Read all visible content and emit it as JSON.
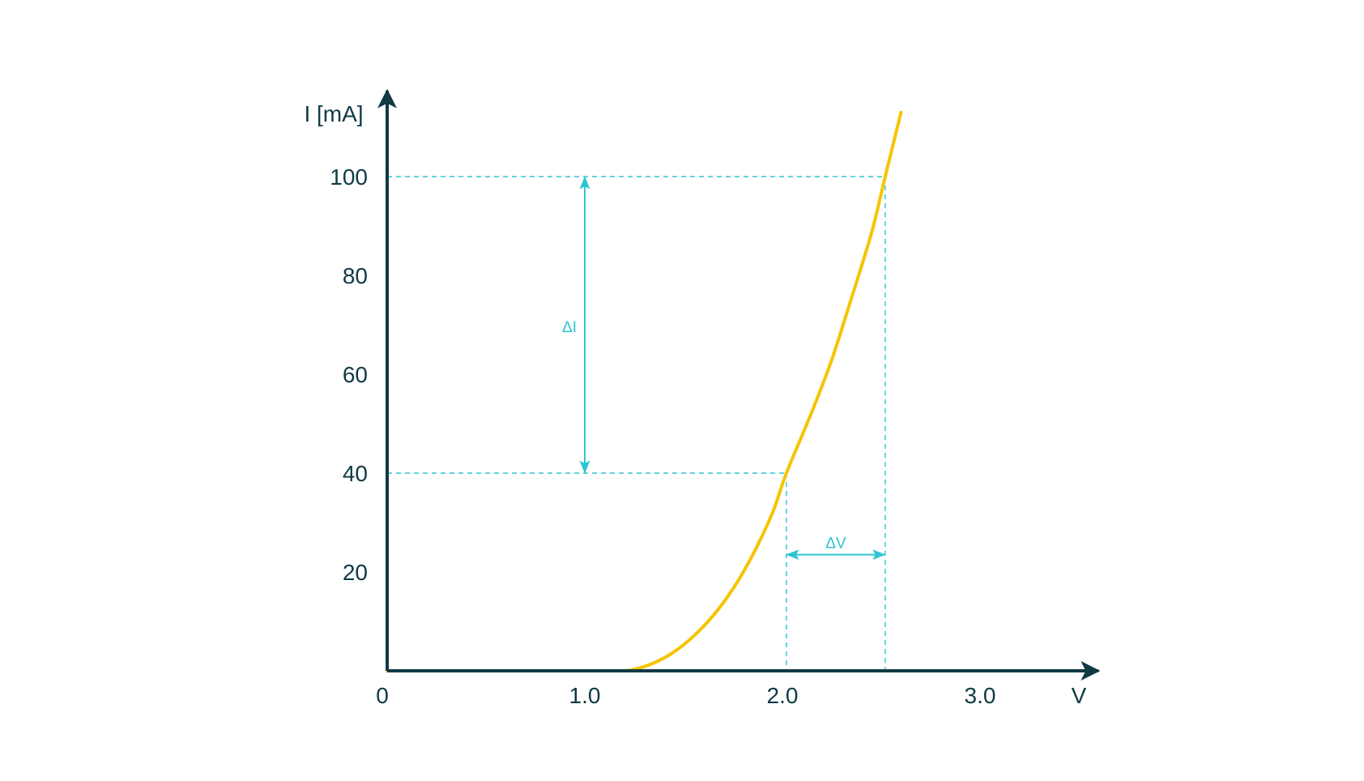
{
  "chart_data": {
    "type": "line",
    "title": "",
    "xlabel": "V",
    "ylabel": "I [mA]",
    "x_origin_label": "0",
    "xticks": [
      {
        "value": 1.0,
        "label": "1.0"
      },
      {
        "value": 2.0,
        "label": "2.0"
      },
      {
        "value": 3.0,
        "label": "3.0"
      }
    ],
    "yticks": [
      {
        "value": 20,
        "label": "20"
      },
      {
        "value": 40,
        "label": "40"
      },
      {
        "value": 60,
        "label": "60"
      },
      {
        "value": 80,
        "label": "80"
      },
      {
        "value": 100,
        "label": "100"
      }
    ],
    "xlim": [
      0,
      3.6
    ],
    "ylim": [
      0,
      115
    ],
    "grid": false,
    "series": [
      {
        "color": "#f5c400",
        "points": [
          [
            0.0,
            0
          ],
          [
            0.5,
            0
          ],
          [
            1.0,
            0
          ],
          [
            1.18,
            0
          ],
          [
            1.25,
            0.3
          ],
          [
            1.35,
            1.6
          ],
          [
            1.45,
            3.8
          ],
          [
            1.55,
            7.0
          ],
          [
            1.65,
            11.2
          ],
          [
            1.75,
            16.6
          ],
          [
            1.85,
            23.5
          ],
          [
            1.95,
            32.0
          ],
          [
            2.02,
            40.0
          ],
          [
            2.15,
            52.5
          ],
          [
            2.25,
            63.0
          ],
          [
            2.35,
            75.5
          ],
          [
            2.45,
            88.5
          ],
          [
            2.52,
            100.0
          ],
          [
            2.6,
            113.0
          ]
        ]
      }
    ],
    "annotations": {
      "color": "#2ec4d3",
      "delta_i": {
        "label": "ΔI",
        "x": 1.0,
        "y_from": 40,
        "y_to": 100
      },
      "delta_v": {
        "label": "ΔV",
        "x_from": 2.02,
        "x_to": 2.52,
        "y": 23.5
      },
      "guides": {
        "y_low": 40,
        "y_high": 100,
        "x_low": 2.02,
        "x_high": 2.52
      }
    }
  },
  "colors": {
    "axis": "#0f3a44",
    "curve": "#f5c400",
    "guide": "#2ec4d3"
  }
}
